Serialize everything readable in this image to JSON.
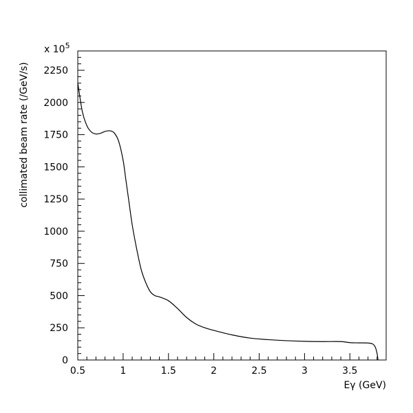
{
  "chart_data": {
    "type": "line",
    "title": "",
    "xlabel": "Eγ (GeV)",
    "ylabel": "collimated beam rate (/GeV/s)",
    "y_multiplier": "x 10",
    "y_multiplier_exp": "5",
    "xlim": [
      0.5,
      3.9
    ],
    "ylim": [
      0,
      2400
    ],
    "x_ticks": [
      0.5,
      1,
      1.5,
      2,
      2.5,
      3,
      3.5
    ],
    "x_tick_labels": [
      "0.5",
      "1",
      "1.5",
      "2",
      "2.5",
      "3",
      "3.5"
    ],
    "y_ticks": [
      0,
      250,
      500,
      750,
      1000,
      1250,
      1500,
      1750,
      2000,
      2250
    ],
    "y_tick_labels": [
      "0",
      "250",
      "500",
      "750",
      "1000",
      "1250",
      "1500",
      "1750",
      "2000",
      "2250"
    ],
    "grid": false,
    "series": [
      {
        "x": [
          0.5,
          0.55,
          0.6,
          0.65,
          0.7,
          0.75,
          0.8,
          0.85,
          0.9,
          0.95,
          1.0,
          1.03,
          1.06,
          1.1,
          1.15,
          1.2,
          1.25,
          1.3,
          1.35,
          1.4,
          1.5,
          1.6,
          1.7,
          1.8,
          1.9,
          2.0,
          2.2,
          2.4,
          2.6,
          2.8,
          3.0,
          3.2,
          3.4,
          3.5,
          3.6,
          3.7,
          3.75,
          3.78,
          3.8,
          3.81
        ],
        "y": [
          2150,
          1930,
          1820,
          1770,
          1755,
          1760,
          1775,
          1780,
          1765,
          1700,
          1550,
          1400,
          1250,
          1050,
          860,
          700,
          600,
          530,
          500,
          490,
          460,
          400,
          330,
          280,
          250,
          230,
          195,
          170,
          158,
          150,
          145,
          143,
          143,
          135,
          133,
          132,
          125,
          100,
          50,
          0
        ]
      }
    ]
  }
}
